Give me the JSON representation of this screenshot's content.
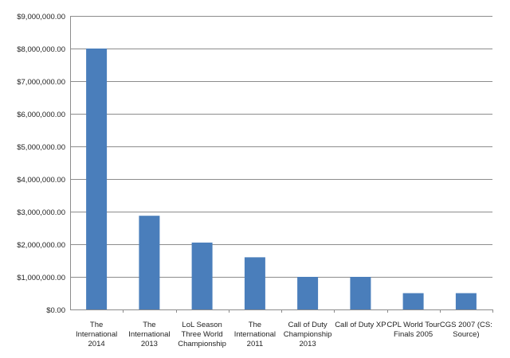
{
  "chart_data": {
    "type": "bar",
    "categories": [
      [
        "The",
        "International",
        "2014"
      ],
      [
        "The",
        "International",
        "2013"
      ],
      [
        "LoL Season",
        "Three World",
        "Championship"
      ],
      [
        "The",
        "International",
        "2011"
      ],
      [
        "Call of Duty",
        "Championship",
        "2013"
      ],
      [
        "Call of Duty XP"
      ],
      [
        "CPL World Tour",
        "Finals 2005"
      ],
      [
        "CGS 2007 (CS:",
        "Source)"
      ]
    ],
    "values": [
      8000000,
      2874000,
      2050000,
      1600000,
      1000000,
      1000000,
      500000,
      500000
    ],
    "y_ticks": [
      {
        "value": 0,
        "label": "$0.00"
      },
      {
        "value": 1000000,
        "label": "$1,000,000.00"
      },
      {
        "value": 2000000,
        "label": "$2,000,000.00"
      },
      {
        "value": 3000000,
        "label": "$3,000,000.00"
      },
      {
        "value": 4000000,
        "label": "$4,000,000.00"
      },
      {
        "value": 5000000,
        "label": "$5,000,000.00"
      },
      {
        "value": 6000000,
        "label": "$6,000,000.00"
      },
      {
        "value": 7000000,
        "label": "$7,000,000.00"
      },
      {
        "value": 8000000,
        "label": "$8,000,000.00"
      },
      {
        "value": 9000000,
        "label": "$9,000,000.00"
      }
    ],
    "ylim": [
      0,
      9000000
    ],
    "grid": true,
    "legend": "none",
    "title": "",
    "xlabel": "",
    "ylabel": "",
    "bar_color": "#4a7ebb"
  }
}
